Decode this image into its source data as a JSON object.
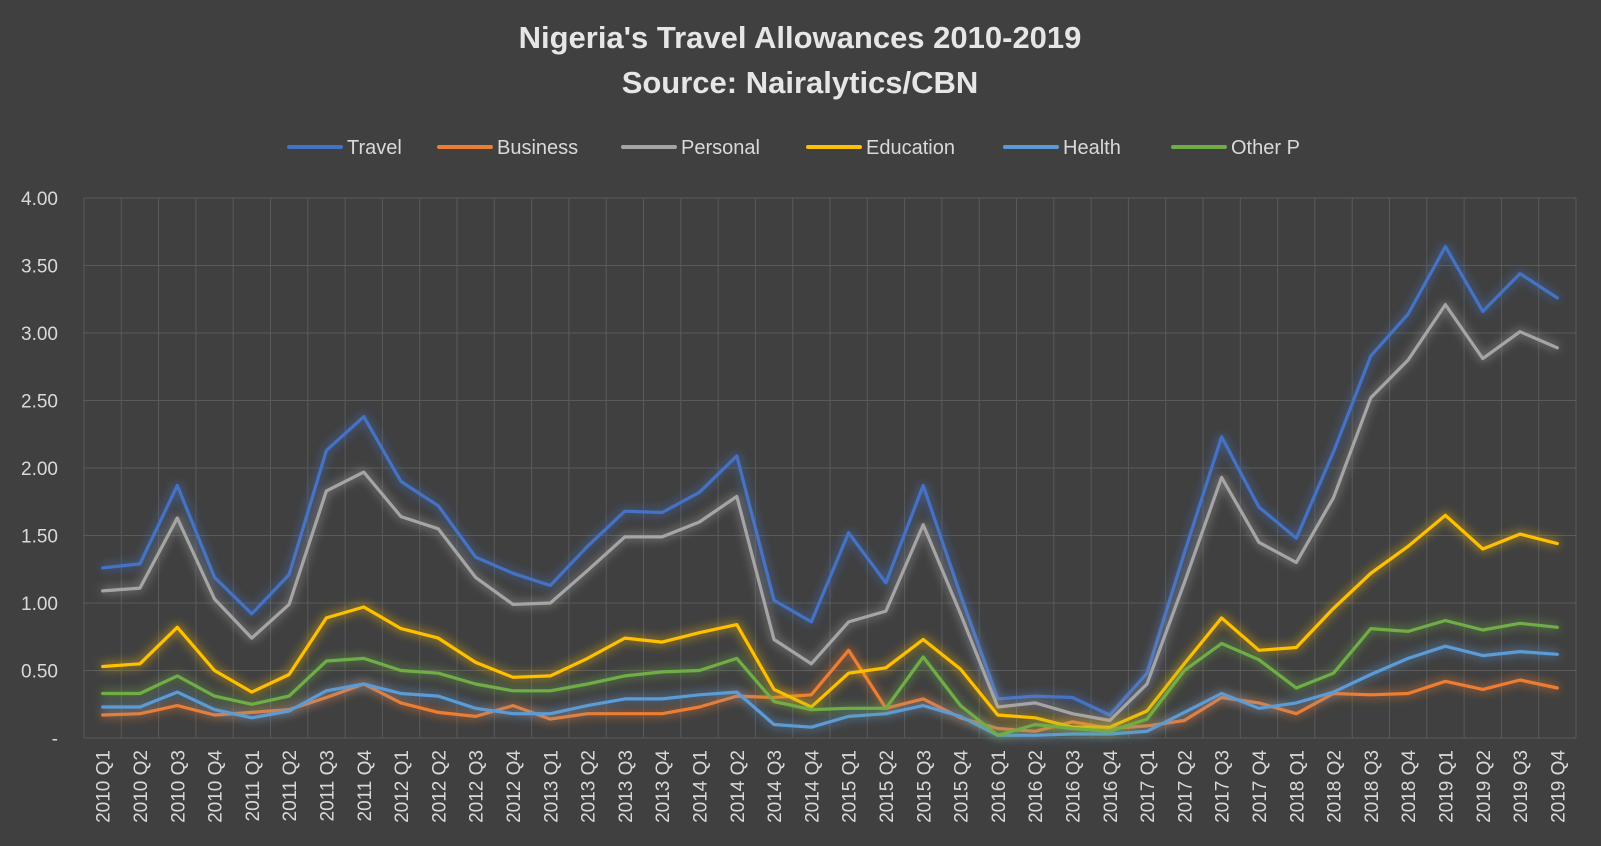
{
  "chart_data": {
    "type": "line",
    "title": "Nigeria's Travel Allowances 2010-2019",
    "subtitle": "Source: Nairalytics/CBN",
    "xlabel": "",
    "ylabel": "",
    "ylim": [
      0,
      4
    ],
    "yticks": [
      {
        "value": 0,
        "label": "-"
      },
      {
        "value": 0.5,
        "label": "0.50"
      },
      {
        "value": 1.0,
        "label": "1.00"
      },
      {
        "value": 1.5,
        "label": "1.50"
      },
      {
        "value": 2.0,
        "label": "2.00"
      },
      {
        "value": 2.5,
        "label": "2.50"
      },
      {
        "value": 3.0,
        "label": "3.00"
      },
      {
        "value": 3.5,
        "label": "3.50"
      },
      {
        "value": 4.0,
        "label": "4.00"
      }
    ],
    "grid": true,
    "legend_position": "top",
    "categories": [
      "2010 Q1",
      "2010 Q2",
      "2010 Q3",
      "2010 Q4",
      "2011 Q1",
      "2011 Q2",
      "2011 Q3",
      "2011 Q4",
      "2012 Q1",
      "2012 Q2",
      "2012 Q3",
      "2012 Q4",
      "2013 Q1",
      "2013 Q2",
      "2013 Q3",
      "2013 Q4",
      "2014 Q1",
      "2014 Q2",
      "2014 Q3",
      "2014 Q4",
      "2015 Q1",
      "2015 Q2",
      "2015 Q3",
      "2015 Q4",
      "2016 Q1",
      "2016 Q2",
      "2016 Q3",
      "2016 Q4",
      "2017 Q1",
      "2017 Q2",
      "2017 Q3",
      "2017 Q4",
      "2018 Q1",
      "2018 Q2",
      "2018 Q3",
      "2018 Q4",
      "2019 Q1",
      "2019 Q2",
      "2019 Q3",
      "2019 Q4"
    ],
    "series": [
      {
        "name": "Travel",
        "color": "#4472c4",
        "values": [
          1.26,
          1.29,
          1.87,
          1.19,
          0.92,
          1.21,
          2.13,
          2.38,
          1.9,
          1.72,
          1.34,
          1.22,
          1.13,
          1.42,
          1.68,
          1.67,
          1.82,
          2.09,
          1.02,
          0.86,
          1.52,
          1.15,
          1.87,
          1.06,
          0.29,
          0.31,
          0.3,
          0.17,
          0.48,
          1.37,
          2.23,
          1.71,
          1.48,
          2.12,
          2.83,
          3.14,
          3.64,
          3.16,
          3.44,
          3.26
        ]
      },
      {
        "name": "Business",
        "color": "#ed7d31",
        "values": [
          0.17,
          0.18,
          0.24,
          0.17,
          0.19,
          0.21,
          0.3,
          0.4,
          0.26,
          0.19,
          0.16,
          0.24,
          0.14,
          0.18,
          0.18,
          0.18,
          0.23,
          0.31,
          0.3,
          0.32,
          0.65,
          0.22,
          0.29,
          0.15,
          0.07,
          0.05,
          0.12,
          0.07,
          0.09,
          0.13,
          0.3,
          0.26,
          0.18,
          0.33,
          0.32,
          0.33,
          0.42,
          0.36,
          0.43,
          0.37
        ]
      },
      {
        "name": "Personal",
        "color": "#a5a5a5",
        "values": [
          1.09,
          1.11,
          1.63,
          1.03,
          0.74,
          0.99,
          1.83,
          1.97,
          1.64,
          1.55,
          1.19,
          0.99,
          1.0,
          1.24,
          1.49,
          1.49,
          1.6,
          1.79,
          0.73,
          0.55,
          0.86,
          0.94,
          1.58,
          0.92,
          0.23,
          0.26,
          0.18,
          0.13,
          0.4,
          1.15,
          1.93,
          1.45,
          1.3,
          1.78,
          2.52,
          2.8,
          3.21,
          2.81,
          3.01,
          2.89
        ]
      },
      {
        "name": "Education",
        "color": "#ffc000",
        "values": [
          0.53,
          0.55,
          0.82,
          0.5,
          0.34,
          0.47,
          0.89,
          0.97,
          0.81,
          0.74,
          0.56,
          0.45,
          0.46,
          0.59,
          0.74,
          0.71,
          0.78,
          0.84,
          0.36,
          0.23,
          0.48,
          0.52,
          0.73,
          0.51,
          0.17,
          0.15,
          0.08,
          0.08,
          0.2,
          0.55,
          0.89,
          0.65,
          0.67,
          0.96,
          1.22,
          1.42,
          1.65,
          1.4,
          1.51,
          1.44
        ]
      },
      {
        "name": "Health",
        "color": "#5b9bd5",
        "values": [
          0.23,
          0.23,
          0.34,
          0.21,
          0.15,
          0.2,
          0.35,
          0.4,
          0.33,
          0.31,
          0.22,
          0.18,
          0.18,
          0.24,
          0.29,
          0.29,
          0.32,
          0.34,
          0.1,
          0.08,
          0.16,
          0.18,
          0.24,
          0.16,
          0.02,
          0.02,
          0.03,
          0.03,
          0.05,
          0.19,
          0.33,
          0.22,
          0.26,
          0.34,
          0.47,
          0.59,
          0.68,
          0.61,
          0.64,
          0.62
        ]
      },
      {
        "name": "Other P",
        "color": "#70ad47",
        "values": [
          0.33,
          0.33,
          0.46,
          0.31,
          0.25,
          0.31,
          0.57,
          0.59,
          0.5,
          0.48,
          0.4,
          0.35,
          0.35,
          0.4,
          0.46,
          0.49,
          0.5,
          0.59,
          0.27,
          0.21,
          0.22,
          0.22,
          0.6,
          0.24,
          0.02,
          0.1,
          0.07,
          0.05,
          0.14,
          0.5,
          0.7,
          0.58,
          0.37,
          0.48,
          0.81,
          0.79,
          0.87,
          0.8,
          0.85,
          0.82
        ]
      }
    ]
  }
}
